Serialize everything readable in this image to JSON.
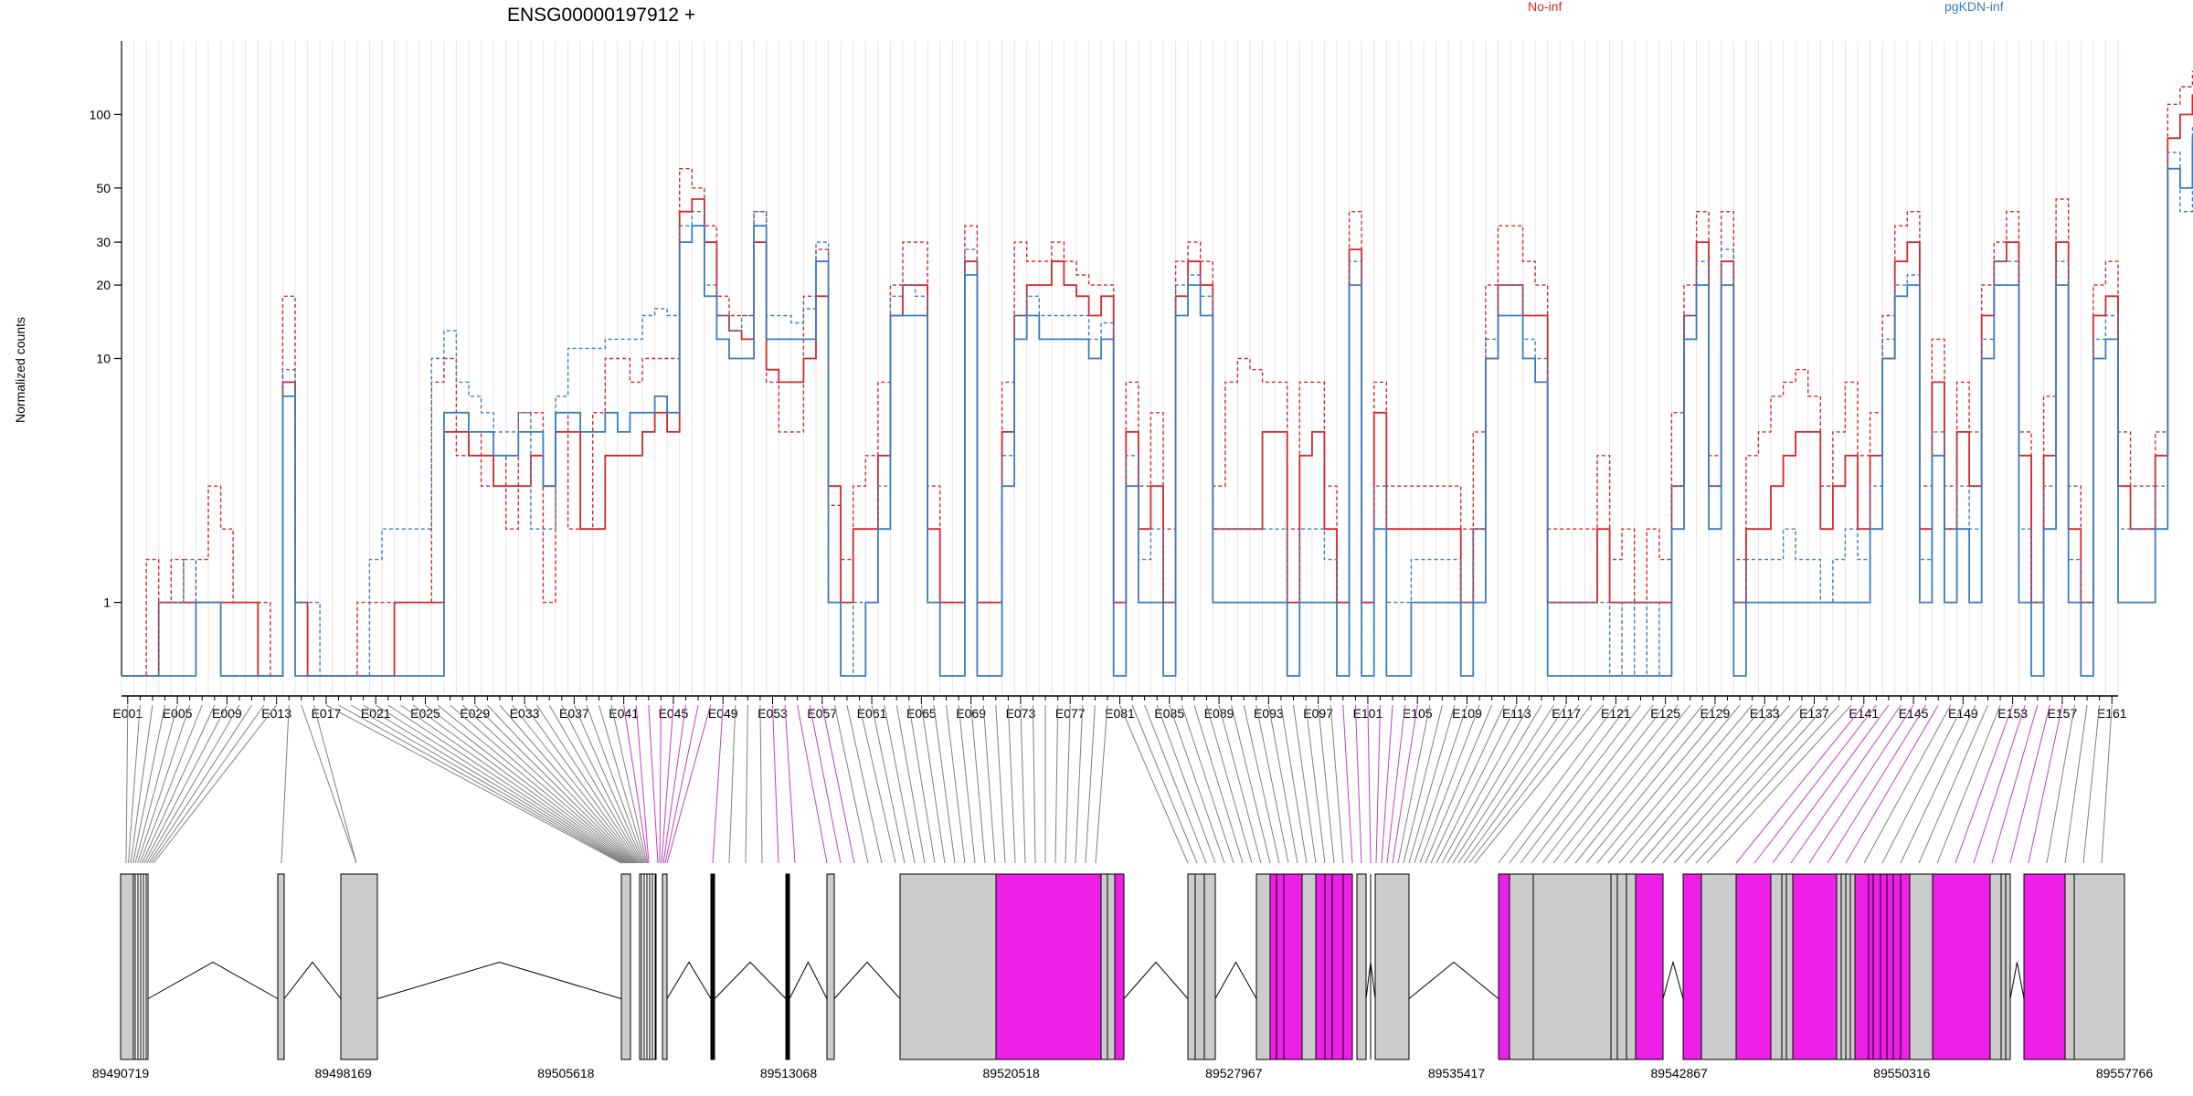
{
  "chart_data": {
    "type": "line",
    "title": "ENSG00000197912 +",
    "ylabel": "Normalized counts",
    "yscale": "log",
    "ylim": [
      0.5,
      200
    ],
    "yticks": [
      1,
      10,
      20,
      30,
      50,
      100
    ],
    "ytick_labels": [
      "1",
      "10",
      "20",
      "30",
      "50",
      "100"
    ],
    "exon_count": 161,
    "exon_tick_labels": [
      "E001",
      "E005",
      "E009",
      "E013",
      "E017",
      "E021",
      "E025",
      "E029",
      "E033",
      "E037",
      "E041",
      "E045",
      "E049",
      "E053",
      "E057",
      "E061",
      "E065",
      "E069",
      "E073",
      "E077",
      "E081",
      "E085",
      "E089",
      "E093",
      "E097",
      "E101",
      "E105",
      "E109",
      "E113",
      "E117",
      "E121",
      "E125",
      "E129",
      "E133",
      "E137",
      "E141",
      "E145",
      "E149",
      "E153",
      "E157",
      "E161"
    ],
    "legend": [
      {
        "name": "No-inf",
        "color": "#d62728"
      },
      {
        "name": "pgKDN-inf",
        "color": "#3a7dbf"
      }
    ],
    "series": [
      {
        "name": "No-inf",
        "color": "#d62728",
        "style": "solid",
        "values": [
          0.5,
          0.5,
          0.5,
          1,
          1,
          1,
          1,
          1,
          1,
          1,
          1,
          0.5,
          0.5,
          8,
          1,
          0.5,
          0.5,
          0.5,
          0.5,
          0.5,
          0.5,
          0.5,
          1,
          1,
          1,
          1,
          5,
          5,
          4,
          4,
          3,
          3,
          3,
          4,
          3,
          5,
          5,
          2,
          2,
          4,
          4,
          4,
          5,
          6,
          5,
          40,
          45,
          30,
          15,
          13,
          12,
          30,
          9,
          8,
          8,
          10,
          18,
          3,
          1,
          2,
          2,
          4,
          15,
          20,
          20,
          2,
          1,
          1,
          25,
          1,
          1,
          5,
          15,
          20,
          20,
          25,
          20,
          18,
          15,
          18,
          1,
          5,
          2,
          3,
          1,
          18,
          25,
          20,
          2,
          2,
          2,
          2,
          5,
          5,
          1,
          4,
          5,
          2,
          1,
          28,
          1,
          6,
          2,
          2,
          2,
          2,
          2,
          2,
          1,
          2,
          10,
          20,
          20,
          15,
          15,
          1,
          1,
          1,
          1,
          2,
          1,
          1,
          1,
          1,
          1,
          3,
          15,
          30,
          3,
          25,
          1,
          2,
          2,
          3,
          4,
          5,
          5,
          2,
          3,
          4,
          2,
          4,
          10,
          25,
          30,
          2,
          8,
          2,
          5,
          3,
          15,
          25,
          30,
          4,
          1,
          4,
          30,
          2,
          1,
          15,
          18,
          3,
          2,
          2,
          4,
          80,
          100,
          120
        ]
      },
      {
        "name": "No-inf",
        "color": "#d62728",
        "style": "dashed",
        "values": [
          0.5,
          0.5,
          1.5,
          1,
          1.5,
          1,
          1.5,
          3,
          2,
          1,
          1,
          1,
          0.5,
          18,
          1,
          0.5,
          0.5,
          0.5,
          0.5,
          1,
          1,
          1,
          1,
          1,
          1,
          8,
          10,
          4,
          5,
          3,
          4,
          2,
          6,
          6,
          1,
          6,
          2,
          2,
          6,
          10,
          10,
          8,
          10,
          10,
          10,
          60,
          50,
          35,
          18,
          15,
          15,
          40,
          8,
          5,
          5,
          18,
          28,
          2.5,
          1.5,
          3,
          4,
          8,
          20,
          30,
          30,
          3,
          1,
          1,
          35,
          1,
          1,
          8,
          30,
          25,
          25,
          30,
          25,
          22,
          20,
          20,
          1,
          8,
          3,
          6,
          2,
          25,
          30,
          25,
          3,
          8,
          10,
          9,
          8,
          8,
          2,
          8,
          8,
          3,
          1,
          40,
          1,
          8,
          3,
          3,
          3,
          3,
          3,
          3,
          2,
          5,
          20,
          35,
          35,
          25,
          20,
          2,
          2,
          2,
          2,
          4,
          1.5,
          2,
          1,
          2,
          1.5,
          6,
          20,
          40,
          4,
          40,
          1.5,
          4,
          5,
          7,
          8,
          9,
          7,
          3,
          5,
          8,
          4,
          6,
          15,
          35,
          40,
          3,
          12,
          3,
          8,
          5,
          20,
          30,
          40,
          5,
          1,
          7,
          45,
          3,
          1,
          20,
          25,
          5,
          3,
          3,
          5,
          110,
          130,
          150
        ]
      },
      {
        "name": "pgKDN-inf",
        "color": "#3a7dbf",
        "style": "solid",
        "values": [
          0.5,
          0.5,
          0.5,
          0.5,
          0.5,
          0.5,
          1,
          1,
          0.5,
          0.5,
          0.5,
          0.5,
          0.5,
          7,
          0.5,
          0.5,
          0.5,
          0.5,
          0.5,
          0.5,
          0.5,
          0.5,
          0.5,
          0.5,
          0.5,
          0.5,
          6,
          6,
          5,
          5,
          4,
          4,
          5,
          5,
          3,
          6,
          6,
          5,
          5,
          6,
          5,
          6,
          6,
          7,
          6,
          30,
          35,
          18,
          12,
          10,
          10,
          35,
          12,
          12,
          12,
          12,
          25,
          1,
          0.5,
          0.5,
          1,
          2,
          15,
          15,
          15,
          1,
          0.5,
          0.5,
          22,
          0.5,
          0.5,
          3,
          12,
          15,
          12,
          12,
          12,
          12,
          10,
          12,
          0.5,
          3,
          1,
          1,
          0.5,
          15,
          20,
          15,
          1,
          1,
          1,
          1,
          1,
          1,
          0.5,
          1,
          1,
          1,
          0.5,
          20,
          0.5,
          2,
          0.5,
          0.5,
          1,
          1,
          1,
          1,
          0.5,
          1,
          10,
          15,
          15,
          10,
          8,
          0.5,
          0.5,
          0.5,
          0.5,
          0.5,
          0.5,
          0.5,
          0.5,
          0.5,
          0.5,
          2,
          12,
          20,
          2,
          20,
          0.5,
          1,
          1,
          1,
          1,
          1,
          1,
          1,
          1,
          1,
          1,
          2,
          10,
          18,
          20,
          1,
          4,
          1,
          2,
          1,
          10,
          20,
          20,
          1,
          0.5,
          2,
          20,
          1,
          0.5,
          10,
          12,
          1,
          1,
          1,
          2,
          60,
          50,
          80
        ]
      },
      {
        "name": "pgKDN-inf",
        "color": "#3a7dbf",
        "style": "dashed",
        "values": [
          0.5,
          0.5,
          0.5,
          1,
          1,
          1.5,
          1,
          1,
          0.5,
          0.5,
          0.5,
          0.5,
          0.5,
          9,
          1,
          1,
          0.5,
          0.5,
          0.5,
          0.5,
          1.5,
          2,
          2,
          2,
          2,
          10,
          13,
          8,
          7,
          6,
          5,
          5,
          6,
          2,
          2,
          7,
          11,
          11,
          11,
          12,
          12,
          12,
          15,
          16,
          15,
          35,
          40,
          20,
          15,
          13,
          15,
          40,
          15,
          15,
          14,
          16,
          30,
          1,
          0.5,
          1,
          1,
          3,
          18,
          20,
          18,
          1,
          0.5,
          0.5,
          28,
          0.5,
          0.5,
          4,
          15,
          18,
          15,
          15,
          15,
          15,
          12,
          14,
          0.5,
          4,
          1.5,
          2,
          1,
          20,
          22,
          18,
          2,
          2,
          2,
          2,
          2,
          2,
          0.5,
          2,
          2,
          1.5,
          0.5,
          25,
          0.5,
          3,
          1,
          1,
          1.5,
          1.5,
          1.5,
          1.5,
          1,
          2,
          12,
          20,
          20,
          12,
          10,
          1,
          1,
          1,
          1,
          1,
          0.5,
          1,
          0.5,
          1,
          0.5,
          3,
          15,
          25,
          3,
          28,
          1,
          1.5,
          1.5,
          1.5,
          2,
          1.5,
          1.5,
          1,
          1.5,
          2,
          1.5,
          3,
          12,
          20,
          22,
          1.5,
          5,
          2,
          3,
          2,
          12,
          25,
          25,
          2,
          1,
          3,
          25,
          1.5,
          1,
          12,
          15,
          2,
          2,
          2,
          3,
          70,
          40,
          90
        ]
      }
    ],
    "genomic_axis_labels": [
      "89490719",
      "89498169",
      "89505618",
      "89513068",
      "89520518",
      "89527967",
      "89535417",
      "89542867",
      "89550316",
      "89557766"
    ],
    "gene_model_colors": {
      "exon_grey": "#cccccc",
      "exon_highlight": "#ee1fe6",
      "line": "#000000"
    }
  }
}
